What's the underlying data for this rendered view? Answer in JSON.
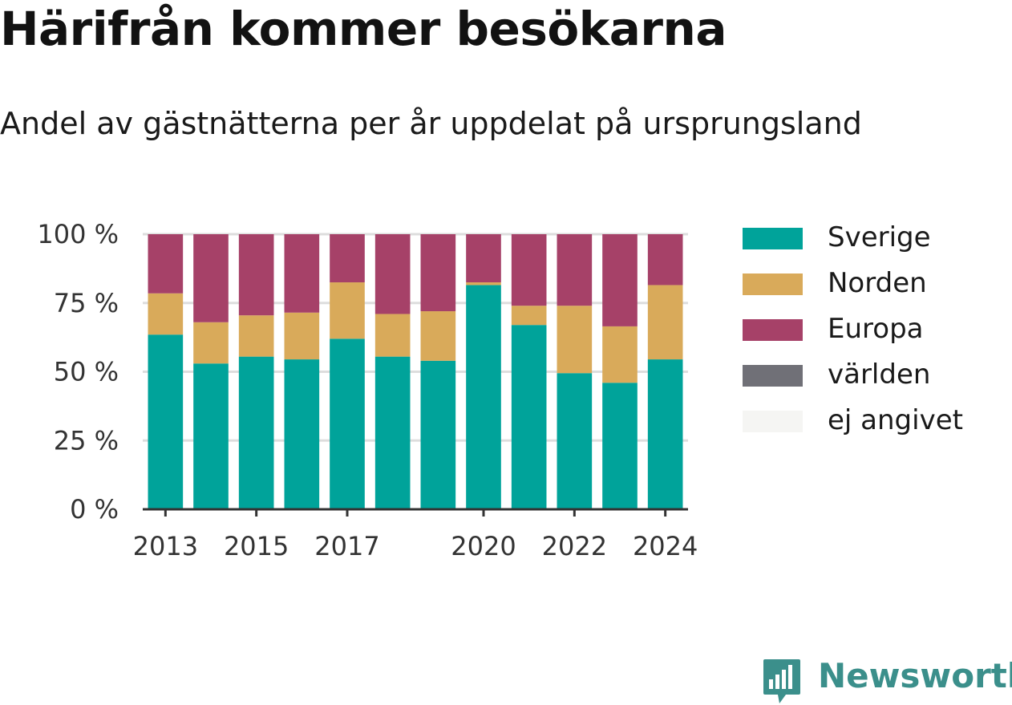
{
  "title": "Härifrån kommer besökarna",
  "subtitle": "Andel av gästnätterna per år uppdelat på ursprungsland",
  "brand": {
    "name": "Newsworthy",
    "icon": "bar-chart-speech-bubble-icon",
    "color": "#3b8f8b"
  },
  "chart_data": {
    "type": "bar",
    "stacked": true,
    "categories": [
      "2013",
      "2014",
      "2015",
      "2016",
      "2017",
      "2018",
      "2019",
      "2020",
      "2021",
      "2022",
      "2023",
      "2024"
    ],
    "x_tick_labels": [
      "2013",
      "",
      "2015",
      "",
      "2017",
      "",
      "",
      "2020",
      "",
      "2022",
      "",
      "2024"
    ],
    "y_tick_labels": [
      "0 %",
      "25 %",
      "50 %",
      "75 %",
      "100 %"
    ],
    "y_ticks": [
      0,
      25,
      50,
      75,
      100
    ],
    "ylim": [
      0,
      100
    ],
    "grid": true,
    "legend_position": "right",
    "series": [
      {
        "name": "Sverige",
        "color": "#00a39a",
        "values": [
          63.5,
          53,
          55.5,
          54.5,
          62,
          55.5,
          54,
          81.5,
          67,
          49.5,
          46,
          54.5
        ]
      },
      {
        "name": "Norden",
        "color": "#d9aa5a",
        "values": [
          15,
          15,
          15,
          17,
          20.5,
          15.5,
          18,
          1,
          7,
          24.5,
          20.5,
          27
        ]
      },
      {
        "name": "Europa",
        "color": "#a64168",
        "values": [
          21.5,
          32,
          29.5,
          28.5,
          17.5,
          29,
          28,
          17.5,
          26,
          26,
          33.5,
          18.5
        ]
      },
      {
        "name": "världen",
        "color": "#707077",
        "values": [
          0,
          0,
          0,
          0,
          0,
          0,
          0,
          0,
          0,
          0,
          0,
          0
        ]
      },
      {
        "name": "ej angivet",
        "color": "#f5f5f3",
        "values": [
          0,
          0,
          0,
          0,
          0,
          0,
          0,
          0,
          0,
          0,
          0,
          0
        ]
      }
    ]
  }
}
